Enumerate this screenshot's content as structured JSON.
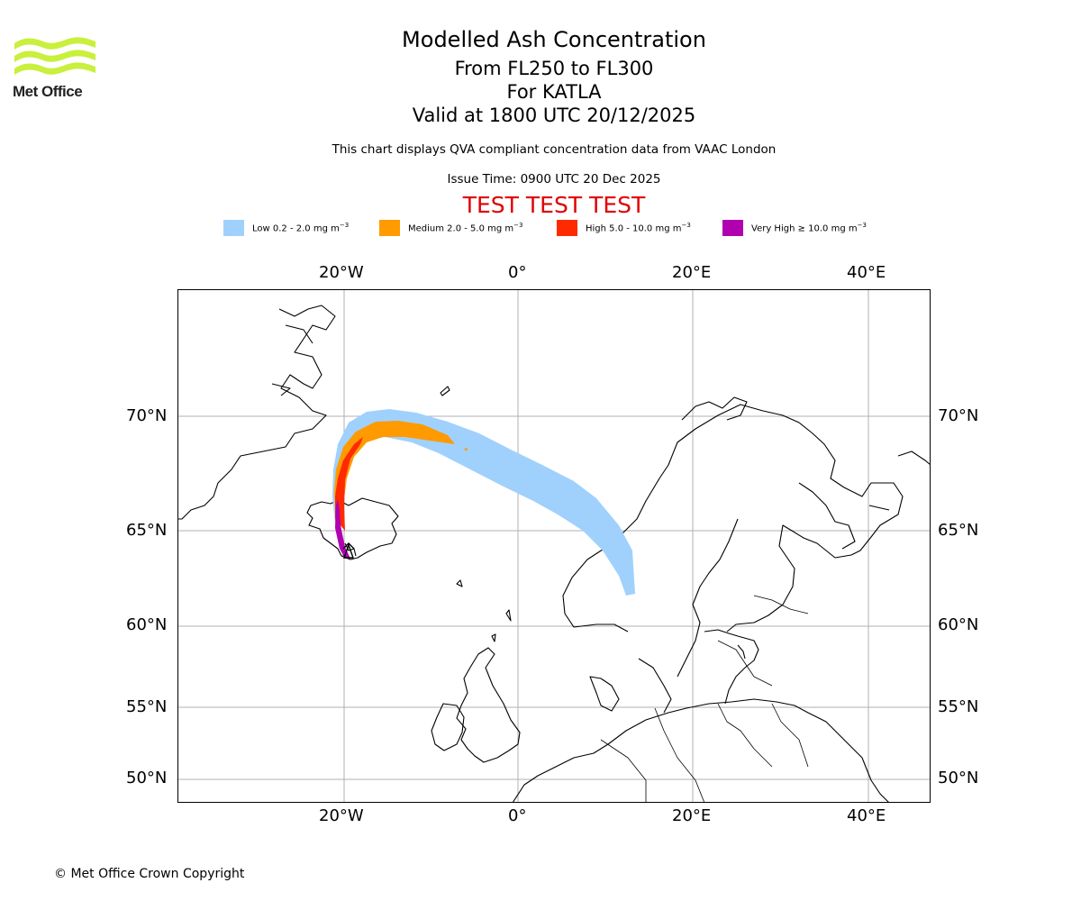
{
  "header": {
    "title": "Modelled Ash Concentration",
    "flight_levels": "From FL250 to FL300",
    "volcano": "For KATLA",
    "valid_time": "Valid at 1800 UTC 20/12/2025",
    "compliance_note": "This chart displays QVA compliant concentration data from VAAC London",
    "issue_time": "Issue Time: 0900 UTC 20 Dec 2025",
    "test_banner": "TEST TEST TEST"
  },
  "logo": {
    "name": "Met Office"
  },
  "legend": [
    {
      "label": "Low 0.2 - 2.0 mg m",
      "color": "#a0d1fd"
    },
    {
      "label": "Medium 2.0 - 5.0 mg m",
      "color": "#ff9a00"
    },
    {
      "label": "High 5.0 - 10.0 mg m",
      "color": "#ff2a00"
    },
    {
      "label": "Very High ≥ 10.0 mg m",
      "color": "#b000b0"
    }
  ],
  "legend_exponent": "−3",
  "axes": {
    "lon_labels": [
      "20°W",
      "0°",
      "20°E",
      "40°E"
    ],
    "lat_labels": [
      "70°N",
      "65°N",
      "60°N",
      "55°N",
      "50°N"
    ]
  },
  "footer": {
    "copyright": "© Met Office Crown Copyright"
  }
}
